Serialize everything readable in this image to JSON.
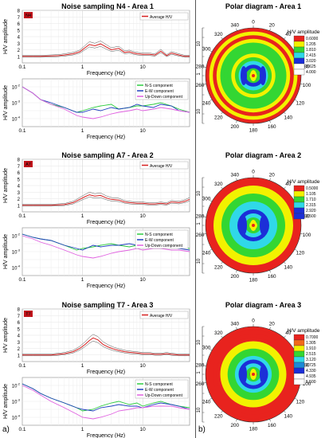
{
  "left_titles": [
    "Noise sampling N4 - Area 1",
    "Noise sampling A7 - Area 2",
    "Noise sampling T7 - Area 3"
  ],
  "right_titles": [
    "Polar diagram - Area 1",
    "Polar diagram - Area 2",
    "Polar diagram - Area 3"
  ],
  "panel_labels": {
    "left": "a)",
    "right": "b)"
  },
  "site_badges": [
    "N4",
    "A7",
    "T7"
  ],
  "colors": {
    "avg": "#d62020",
    "ns": "#2ecc40",
    "ew": "#1f3fbf",
    "ud": "#e060e0",
    "badge": "#c0141b"
  },
  "chart_data": [
    {
      "type": "line",
      "title": "Noise sampling N4 - Area 1",
      "xlabel": "Frequency (Hz)",
      "ylabel": "H/V amplitude",
      "xscale": "log",
      "xlim": [
        0.1,
        60
      ],
      "ylim": [
        0,
        8
      ],
      "yticks": [
        "1",
        "2",
        "3",
        "4",
        "5",
        "6",
        "7",
        "8"
      ],
      "xticks": [
        "0.1",
        "1",
        "10"
      ],
      "legend": [
        "Average H/V"
      ],
      "series": [
        {
          "name": "Average H/V",
          "x": [
            0.1,
            0.15,
            0.2,
            0.3,
            0.4,
            0.5,
            0.7,
            0.9,
            1.1,
            1.3,
            1.6,
            2.0,
            2.5,
            3.0,
            4.0,
            5.0,
            6.0,
            7.0,
            8.0,
            10,
            13,
            16,
            20,
            25,
            30,
            40,
            50,
            60
          ],
          "y": [
            1.0,
            1.0,
            1.0,
            1.05,
            1.1,
            1.2,
            1.4,
            1.7,
            2.3,
            2.8,
            2.6,
            2.9,
            2.4,
            2.0,
            2.2,
            1.6,
            1.7,
            1.5,
            1.4,
            1.3,
            1.3,
            1.2,
            1.8,
            1.1,
            1.5,
            1.2,
            1.0,
            1.0
          ]
        }
      ]
    },
    {
      "type": "line",
      "xlabel": "Frequency (Hz)",
      "ylabel": "H/V amplitude",
      "xscale": "log",
      "yscale": "log",
      "xlim": [
        0.1,
        60
      ],
      "xticks": [
        "0.1",
        "1",
        "10"
      ],
      "legend": [
        "N-S component",
        "E-W component",
        "Up-Down component"
      ],
      "series": [
        {
          "name": "N-S component",
          "x": [
            0.1,
            0.15,
            0.2,
            0.3,
            0.5,
            0.8,
            1.0,
            1.5,
            2.0,
            3.0,
            4.0,
            6.0,
            8.0,
            10,
            15,
            20,
            30,
            40,
            60
          ],
          "y": [
            -2.0,
            -2.4,
            -2.8,
            -3.1,
            -3.3,
            -3.6,
            -3.5,
            -3.3,
            -3.2,
            -3.1,
            -3.4,
            -3.3,
            -3.2,
            -3.2,
            -3.1,
            -3.0,
            -3.2,
            -3.4,
            -3.6
          ]
        },
        {
          "name": "E-W component",
          "x": [
            0.1,
            0.15,
            0.2,
            0.3,
            0.5,
            0.8,
            1.0,
            1.5,
            2.0,
            3.0,
            4.0,
            6.0,
            8.0,
            10,
            15,
            20,
            30,
            40,
            60
          ],
          "y": [
            -2.0,
            -2.4,
            -2.8,
            -3.0,
            -3.3,
            -3.6,
            -3.6,
            -3.4,
            -3.5,
            -3.3,
            -3.4,
            -3.3,
            -3.1,
            -3.2,
            -3.3,
            -3.1,
            -3.2,
            -3.5,
            -3.6
          ]
        },
        {
          "name": "Up-Down component",
          "x": [
            0.1,
            0.15,
            0.2,
            0.3,
            0.5,
            0.8,
            1.0,
            1.5,
            2.0,
            3.0,
            4.0,
            6.0,
            8.0,
            10,
            15,
            20,
            30,
            40,
            60
          ],
          "y": [
            -2.0,
            -2.4,
            -2.8,
            -3.1,
            -3.4,
            -3.8,
            -3.9,
            -4.0,
            -3.9,
            -3.7,
            -3.6,
            -3.5,
            -3.4,
            -3.5,
            -3.4,
            -3.3,
            -3.4,
            -3.5,
            -3.6
          ]
        }
      ]
    },
    {
      "type": "line",
      "title": "Noise sampling A7 - Area 2",
      "xlabel": "Frequency (Hz)",
      "ylabel": "H/V amplitude",
      "xscale": "log",
      "xlim": [
        0.1,
        60
      ],
      "ylim": [
        0,
        8
      ],
      "yticks": [
        "1",
        "2",
        "3",
        "4",
        "5",
        "6",
        "7",
        "8"
      ],
      "xticks": [
        "0.1",
        "1",
        "10"
      ],
      "legend": [
        "Average H/V"
      ],
      "series": [
        {
          "name": "Average H/V",
          "x": [
            0.1,
            0.15,
            0.2,
            0.3,
            0.4,
            0.5,
            0.7,
            0.9,
            1.1,
            1.3,
            1.6,
            2.0,
            2.5,
            3.0,
            4.0,
            5.0,
            6.0,
            8.0,
            10,
            13,
            16,
            20,
            25,
            30,
            40,
            50,
            60
          ],
          "y": [
            1.0,
            1.0,
            1.0,
            1.0,
            1.05,
            1.1,
            1.4,
            1.9,
            2.3,
            2.6,
            2.4,
            2.5,
            2.1,
            1.9,
            1.8,
            1.5,
            1.4,
            1.3,
            1.3,
            1.2,
            1.2,
            1.3,
            1.2,
            1.5,
            1.4,
            1.6,
            1.9
          ]
        }
      ]
    },
    {
      "type": "line",
      "xlabel": "Frequency (Hz)",
      "ylabel": "H/V amplitude",
      "xscale": "log",
      "yscale": "log",
      "xlim": [
        0.1,
        60
      ],
      "xticks": [
        "0.1",
        "1",
        "10"
      ],
      "legend": [
        "N-S component",
        "E-W component",
        "Up-Down component"
      ],
      "series": [
        {
          "name": "N-S component",
          "x": [
            0.1,
            0.15,
            0.2,
            0.3,
            0.5,
            0.8,
            1.0,
            1.5,
            2.0,
            3.0,
            4.0,
            6.0,
            8.0,
            10,
            15,
            20,
            30,
            40,
            60
          ],
          "y": [
            -1.9,
            -2.1,
            -2.2,
            -2.3,
            -2.6,
            -2.9,
            -2.8,
            -2.7,
            -2.6,
            -2.5,
            -2.6,
            -2.7,
            -2.6,
            -2.5,
            -2.6,
            -2.7,
            -2.6,
            -2.7,
            -2.8
          ]
        },
        {
          "name": "E-W component",
          "x": [
            0.1,
            0.15,
            0.2,
            0.3,
            0.5,
            0.8,
            1.0,
            1.5,
            2.0,
            3.0,
            4.0,
            6.0,
            8.0,
            10,
            15,
            20,
            30,
            40,
            60
          ],
          "y": [
            -1.9,
            -2.1,
            -2.2,
            -2.3,
            -2.6,
            -2.8,
            -2.9,
            -2.6,
            -2.7,
            -2.6,
            -2.6,
            -2.5,
            -2.6,
            -2.6,
            -2.7,
            -2.6,
            -2.7,
            -2.8,
            -2.9
          ]
        },
        {
          "name": "Up-Down component",
          "x": [
            0.1,
            0.15,
            0.2,
            0.3,
            0.5,
            0.8,
            1.0,
            1.5,
            2.0,
            3.0,
            4.0,
            6.0,
            8.0,
            10,
            15,
            20,
            30,
            40,
            60
          ],
          "y": [
            -2.0,
            -2.2,
            -2.4,
            -2.6,
            -2.9,
            -3.2,
            -3.3,
            -3.4,
            -3.3,
            -3.1,
            -3.0,
            -2.9,
            -2.8,
            -2.9,
            -2.8,
            -2.8,
            -2.9,
            -2.9,
            -3.0
          ]
        }
      ]
    },
    {
      "type": "line",
      "title": "Noise sampling T7 - Area 3",
      "xlabel": "Frequency (Hz)",
      "ylabel": "H/V amplitude",
      "xscale": "log",
      "xlim": [
        0.1,
        60
      ],
      "ylim": [
        0,
        8
      ],
      "yticks": [
        "1",
        "2",
        "3",
        "4",
        "5",
        "6",
        "7",
        "8"
      ],
      "xticks": [
        "0.1",
        "1",
        "10"
      ],
      "legend": [
        "Average H/V"
      ],
      "series": [
        {
          "name": "Average H/V",
          "x": [
            0.1,
            0.15,
            0.2,
            0.3,
            0.4,
            0.5,
            0.7,
            0.9,
            1.1,
            1.3,
            1.5,
            1.8,
            2.2,
            2.7,
            3.3,
            4.0,
            5.0,
            6.0,
            8.0,
            10,
            13,
            16,
            20,
            25,
            30,
            40,
            50,
            60
          ],
          "y": [
            1.0,
            1.0,
            1.0,
            1.0,
            1.1,
            1.2,
            1.5,
            2.0,
            2.6,
            3.2,
            3.6,
            3.3,
            2.6,
            2.2,
            1.9,
            1.7,
            1.5,
            1.4,
            1.3,
            1.2,
            1.2,
            1.1,
            1.1,
            1.2,
            1.1,
            1.0,
            1.0,
            1.0
          ]
        }
      ]
    },
    {
      "type": "line",
      "xlabel": "Frequency (Hz)",
      "ylabel": "H/V amplitude",
      "xscale": "log",
      "yscale": "log",
      "xlim": [
        0.1,
        60
      ],
      "xticks": [
        "0.1",
        "1",
        "10"
      ],
      "legend": [
        "N-S component",
        "E-W component",
        "Up-Down component"
      ],
      "series": [
        {
          "name": "N-S component",
          "x": [
            0.1,
            0.15,
            0.2,
            0.3,
            0.5,
            0.8,
            1.0,
            1.5,
            2.0,
            3.0,
            4.0,
            6.0,
            8.0,
            10,
            15,
            20,
            30,
            40,
            60
          ],
          "y": [
            -1.9,
            -2.2,
            -2.5,
            -2.8,
            -3.1,
            -3.4,
            -3.6,
            -3.5,
            -3.3,
            -3.1,
            -3.0,
            -3.2,
            -3.1,
            -3.3,
            -3.1,
            -3.0,
            -3.2,
            -3.3,
            -3.4
          ]
        },
        {
          "name": "E-W component",
          "x": [
            0.1,
            0.15,
            0.2,
            0.3,
            0.5,
            0.8,
            1.0,
            1.5,
            2.0,
            3.0,
            4.0,
            6.0,
            8.0,
            10,
            15,
            20,
            30,
            40,
            60
          ],
          "y": [
            -1.9,
            -2.2,
            -2.5,
            -2.8,
            -3.1,
            -3.4,
            -3.5,
            -3.6,
            -3.4,
            -3.3,
            -3.2,
            -3.3,
            -3.3,
            -3.4,
            -3.2,
            -3.1,
            -3.2,
            -3.3,
            -3.5
          ]
        },
        {
          "name": "Up-Down component",
          "x": [
            0.1,
            0.15,
            0.2,
            0.3,
            0.5,
            0.8,
            1.0,
            1.5,
            2.0,
            3.0,
            4.0,
            6.0,
            8.0,
            10,
            15,
            20,
            30,
            40,
            60
          ],
          "y": [
            -2.0,
            -2.3,
            -2.6,
            -3.0,
            -3.4,
            -3.8,
            -4.0,
            -4.1,
            -4.0,
            -3.8,
            -3.6,
            -3.5,
            -3.4,
            -3.4,
            -3.3,
            -3.3,
            -3.3,
            -3.4,
            -3.5
          ]
        }
      ]
    },
    {
      "type": "heatmap",
      "subtype": "polar",
      "title": "Polar diagram - Area 1",
      "legend_title": "H/V amplitude",
      "legend_values": [
        "0.6000",
        "1.205",
        "1.810",
        "2.415",
        "3.020",
        "3.625",
        "4.000"
      ],
      "angle_ticks": [
        "0",
        "20",
        "40",
        "60",
        "80",
        "100",
        "120",
        "140",
        "160",
        "180",
        "200",
        "220",
        "240",
        "260",
        "280",
        "300",
        "320",
        "340"
      ],
      "radial_ticks": [
        "10",
        "1"
      ],
      "rings": [
        "red",
        "yellow",
        "red",
        "yellow",
        "green",
        "green",
        "green",
        "yellow",
        "green",
        "cyan",
        "blue",
        "green",
        "yellow"
      ]
    },
    {
      "type": "heatmap",
      "subtype": "polar",
      "title": "Polar diagram - Area 2",
      "legend_title": "H/V amplitude",
      "legend_values": [
        "0.5000",
        "1.105",
        "1.710",
        "2.315",
        "2.920",
        "3.500"
      ],
      "angle_ticks": [
        "0",
        "20",
        "40",
        "60",
        "80",
        "100",
        "120",
        "140",
        "160",
        "180",
        "200",
        "220",
        "240",
        "260",
        "280",
        "300",
        "320",
        "340"
      ],
      "radial_ticks": [
        "10",
        "1"
      ],
      "rings": [
        "red",
        "red",
        "yellow",
        "yellow",
        "green",
        "green",
        "cyan",
        "cyan",
        "blue",
        "cyan",
        "green",
        "yellow"
      ]
    },
    {
      "type": "heatmap",
      "subtype": "polar",
      "title": "Polar diagram - Area 3",
      "legend_title": "H/V amplitude",
      "legend_values": [
        "0.7000",
        "1.305",
        "1.910",
        "2.515",
        "3.120",
        "3.725",
        "4.330",
        "4.935",
        "5.500"
      ],
      "angle_ticks": [
        "0",
        "20",
        "40",
        "60",
        "80",
        "100",
        "120",
        "140",
        "160",
        "180",
        "200",
        "220",
        "240",
        "260",
        "280",
        "300",
        "320",
        "340"
      ],
      "radial_ticks": [
        "10",
        "1"
      ],
      "rings": [
        "red",
        "red",
        "red",
        "red",
        "yellow",
        "yellow",
        "green",
        "green",
        "cyan",
        "blue",
        "cyan",
        "green",
        "red"
      ]
    }
  ]
}
